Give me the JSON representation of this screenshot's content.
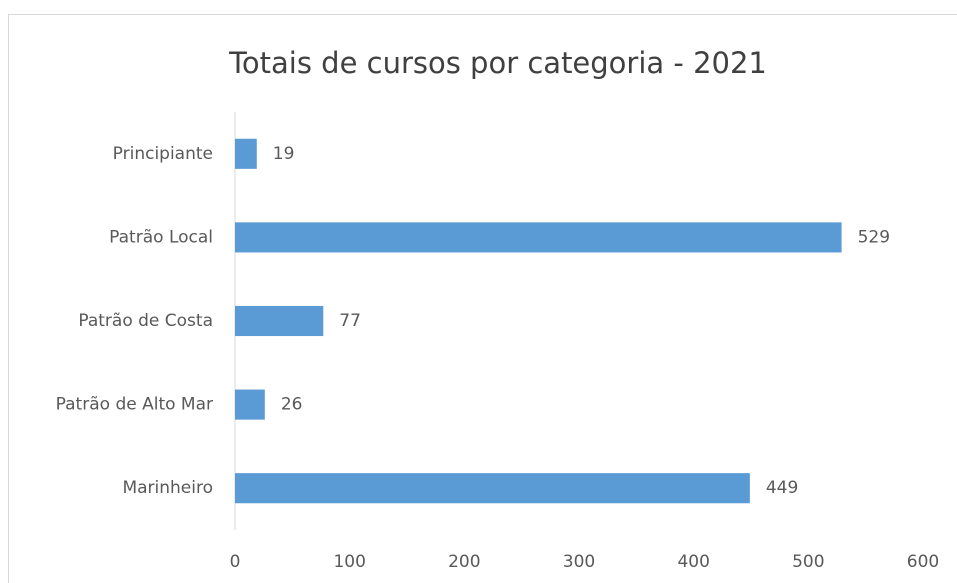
{
  "chart_data": {
    "type": "bar",
    "orientation": "horizontal",
    "title": "Totais de cursos por categoria - 2021",
    "categories": [
      "Principiante",
      "Patrão Local",
      "Patrão de Costa",
      "Patrão de Alto Mar",
      "Marinheiro"
    ],
    "values": [
      19,
      529,
      77,
      26,
      449
    ],
    "color": "#5b9bd5",
    "xlim": [
      0,
      600
    ],
    "xticks": [
      0,
      100,
      200,
      300,
      400,
      500,
      600
    ],
    "grid": false
  }
}
